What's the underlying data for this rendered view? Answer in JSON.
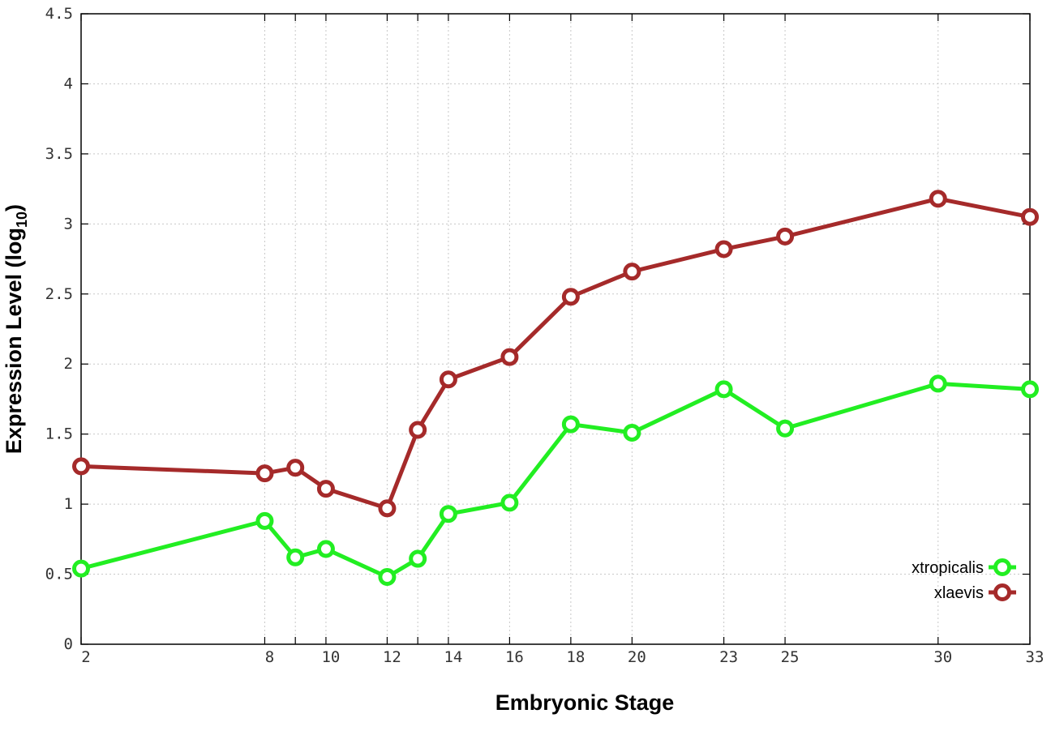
{
  "chart_data": {
    "type": "line",
    "xlabel": "Embryonic Stage",
    "ylabel": "Expression Level (log",
    "ylabel_sub": "10",
    "ylabel_close": ")",
    "x_ticks": [
      "2",
      "8",
      "9",
      "10",
      "12",
      "13",
      "14",
      "16",
      "18",
      "20",
      "23",
      "25",
      "30",
      "33"
    ],
    "x_tick_labels": [
      "2",
      "8",
      "10",
      "12",
      "14",
      "16",
      "18",
      "20",
      "23",
      "25",
      "30",
      "33"
    ],
    "y_ticks": [
      0,
      0.5,
      1,
      1.5,
      2,
      2.5,
      3,
      3.5,
      4,
      4.5
    ],
    "y_tick_labels": [
      "0",
      "0.5",
      "1",
      "1.5",
      "2",
      "2.5",
      "3",
      "3.5",
      "4",
      "4.5"
    ],
    "ylim": [
      0,
      4.5
    ],
    "grid": true,
    "legend_position": "bottom-right",
    "series": [
      {
        "name": "xtropicalis",
        "color": "#22ee22",
        "values": [
          0.54,
          0.88,
          0.62,
          0.68,
          0.48,
          0.61,
          0.93,
          1.01,
          1.57,
          1.51,
          1.82,
          1.54,
          1.86,
          1.82
        ]
      },
      {
        "name": "xlaevis",
        "color": "#a52a2a",
        "values": [
          1.27,
          1.22,
          1.26,
          1.11,
          0.97,
          1.53,
          1.89,
          2.05,
          2.48,
          2.66,
          2.82,
          2.91,
          3.18,
          3.05
        ]
      }
    ]
  }
}
